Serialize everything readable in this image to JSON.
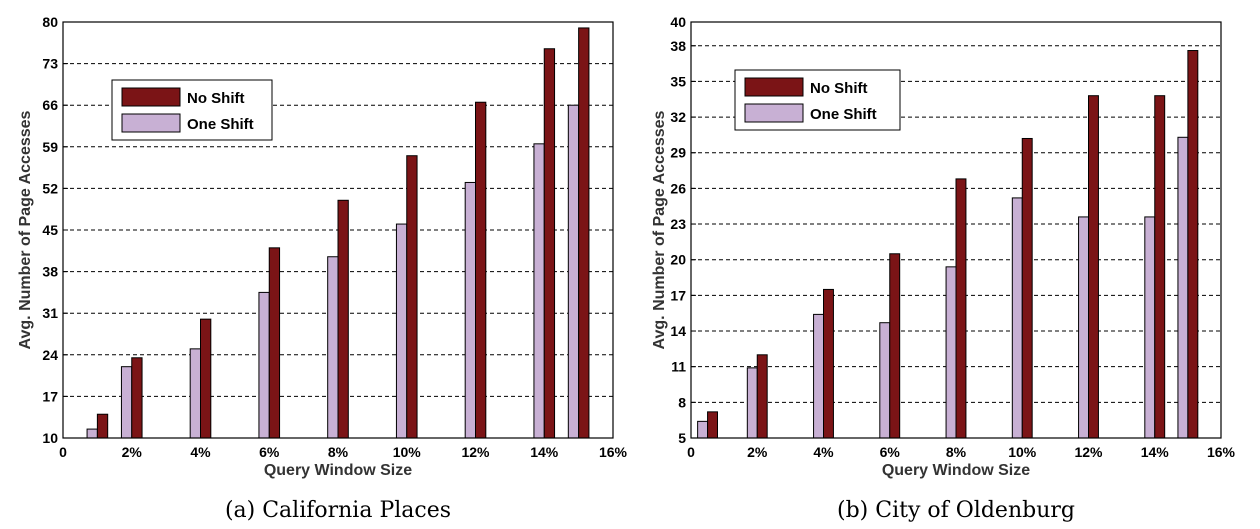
{
  "charts": [
    {
      "caption": "(a) California Places",
      "chart_data": {
        "type": "bar",
        "xlabel": "Query Window Size",
        "ylabel": "Avg. Number of Page Accesses",
        "x_range": [
          0,
          16
        ],
        "x_ticks": [
          "0",
          "2%",
          "4%",
          "6%",
          "8%",
          "10%",
          "12%",
          "14%",
          "16%"
        ],
        "ylim": [
          10,
          80
        ],
        "y_ticks": [
          10,
          17,
          24,
          31,
          38,
          45,
          52,
          59,
          66,
          73,
          80
        ],
        "grid": true,
        "legend_position": "upper-left",
        "categories": [
          "1%",
          "2%",
          "4%",
          "6%",
          "8%",
          "10%",
          "12%",
          "14%",
          "15%"
        ],
        "x": [
          1,
          2,
          4,
          6,
          8,
          10,
          12,
          14,
          15
        ],
        "series": [
          {
            "name": "No Shift",
            "color": "#7b1416",
            "values": [
              14,
              23.5,
              30,
              42,
              50,
              57.5,
              66.5,
              75.5,
              79
            ]
          },
          {
            "name": "One Shift",
            "color": "#c8b0d4",
            "values": [
              11.5,
              22,
              25,
              34.5,
              40.5,
              46,
              53,
              59.5,
              66
            ]
          }
        ]
      }
    },
    {
      "caption": "(b) City of Oldenburg",
      "chart_data": {
        "type": "bar",
        "xlabel": "Query Window Size",
        "ylabel": "Avg. Number of Page Accesses",
        "x_range": [
          0,
          16
        ],
        "x_ticks": [
          "0",
          "2%",
          "4%",
          "6%",
          "8%",
          "10%",
          "12%",
          "14%",
          "16%"
        ],
        "ylim": [
          5,
          40
        ],
        "y_ticks": [
          5,
          8,
          11,
          14,
          17,
          20,
          23,
          26,
          29,
          32,
          35,
          38,
          40
        ],
        "grid": true,
        "legend_position": "upper-left",
        "categories": [
          "0.5%",
          "2%",
          "4%",
          "6%",
          "8%",
          "10%",
          "12%",
          "14%",
          "15%"
        ],
        "x": [
          0.5,
          2,
          4,
          6,
          8,
          10,
          12,
          14,
          15
        ],
        "series": [
          {
            "name": "No Shift",
            "color": "#7b1416",
            "values": [
              7.2,
              12,
              17.5,
              20.5,
              26.8,
              30.2,
              33.8,
              33.8,
              37.6
            ]
          },
          {
            "name": "One Shift",
            "color": "#c8b0d4",
            "values": [
              6.4,
              10.9,
              15.4,
              14.7,
              19.4,
              25.2,
              23.6,
              23.6,
              30.3
            ]
          }
        ]
      }
    }
  ]
}
